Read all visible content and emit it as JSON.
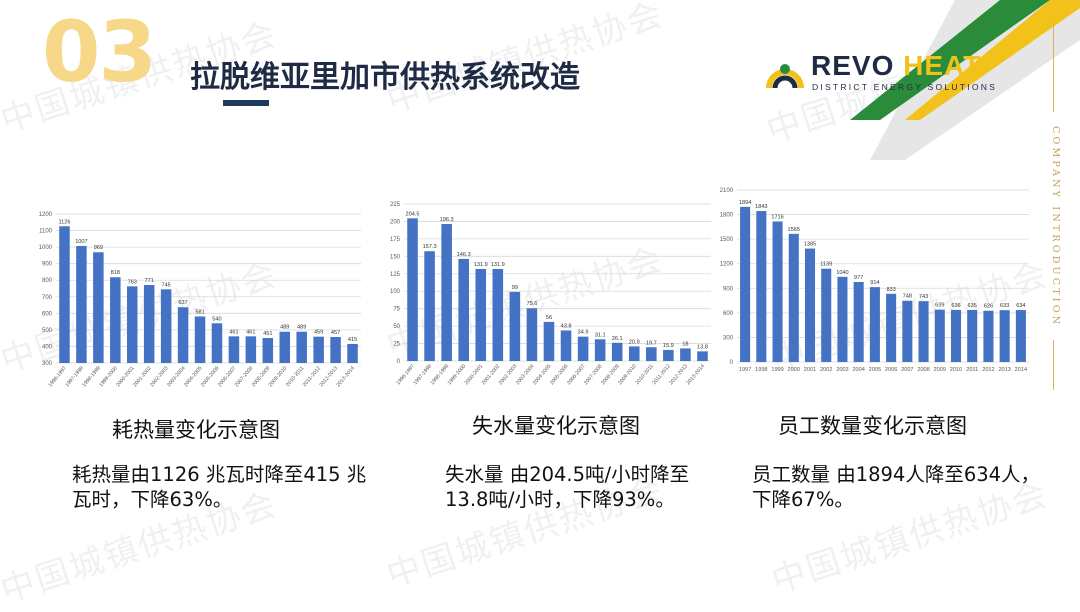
{
  "header": {
    "section_number": "03",
    "title": "拉脱维亚里加市供热系统改造"
  },
  "logo": {
    "revo": "REVO",
    "heat": "HEAT",
    "tagline": "DISTRICT ENERGY SOLUTIONS"
  },
  "side_label": "COMPANY INTRODUCTION",
  "watermark": "中国城镇供热协会",
  "colors": {
    "bar": "#4472c4",
    "section_number": "#f7d889",
    "title": "#1f2a44",
    "accent_gold": "#c5a058",
    "logo_yellow": "#f2c21a",
    "logo_green": "#2a8c3a"
  },
  "panels": [
    {
      "caption": "耗热量变化示意图",
      "description": "耗热量由1126 兆瓦时降至415 兆瓦时，下降63%。"
    },
    {
      "caption": "失水量变化示意图",
      "description": "失水量 由204.5吨/小时降至13.8吨/小时，下降93%。"
    },
    {
      "caption": "员工数量变化示意图",
      "description": "员工数量 由1894人降至634人，下降67%。"
    }
  ],
  "chart_data": [
    {
      "type": "bar",
      "title": "",
      "xlabel": "",
      "ylabel": "",
      "ylim": [
        300,
        1200
      ],
      "yticks": [
        300,
        400,
        500,
        600,
        700,
        800,
        900,
        1000,
        1100,
        1200
      ],
      "grid": true,
      "legend": "none",
      "categories": [
        "1996-1997",
        "1997-1998",
        "1998-1999",
        "1999-2000",
        "2000-2001",
        "2001-2002",
        "2002-2003",
        "2003-2004",
        "2004-2005",
        "2005-2006",
        "2006-2007",
        "2007-2008",
        "2008-2009",
        "2009-2010",
        "2010-2011",
        "2011-2012",
        "2012-2013",
        "2013-2014"
      ],
      "values": [
        1126,
        1007,
        969,
        818,
        763,
        771,
        745,
        637,
        581,
        540,
        461,
        461,
        451,
        489,
        489,
        459,
        457,
        415
      ],
      "rotate_labels": true
    },
    {
      "type": "bar",
      "title": "",
      "xlabel": "",
      "ylabel": "",
      "ylim": [
        0,
        225
      ],
      "yticks": [
        0,
        25,
        50,
        75,
        100,
        125,
        150,
        175,
        200,
        225
      ],
      "grid": true,
      "legend": "none",
      "categories": [
        "1996-1997",
        "1997-1998",
        "1998-1999",
        "1999-2000",
        "2000-2001",
        "2001-2002",
        "2002-2003",
        "2003-2004",
        "2004-2005",
        "2005-2006",
        "2006-2007",
        "2007-2008",
        "2008-2009",
        "2009-2010",
        "2010-2011",
        "2011-2012",
        "2012-2013",
        "2013-2014"
      ],
      "values": [
        204.5,
        157.3,
        196.3,
        146.3,
        131.9,
        131.9,
        99,
        75.6,
        56,
        43.8,
        34.9,
        31.1,
        26.1,
        20.9,
        19.7,
        15.9,
        18,
        13.8
      ],
      "rotate_labels": true
    },
    {
      "type": "bar",
      "title": "",
      "xlabel": "",
      "ylabel": "",
      "ylim": [
        0,
        2100
      ],
      "yticks": [
        0,
        300,
        600,
        900,
        1200,
        1500,
        1800,
        2100
      ],
      "grid": true,
      "legend": "none",
      "categories": [
        "1997",
        "1998",
        "1999",
        "2000",
        "2001",
        "2002",
        "2003",
        "2004",
        "2005",
        "2006",
        "2007",
        "2008",
        "2009",
        "2010",
        "2011",
        "2012",
        "2013",
        "2014"
      ],
      "values": [
        1894,
        1843,
        1716,
        1565,
        1385,
        1139,
        1040,
        977,
        914,
        833,
        748,
        743,
        639,
        636,
        635,
        626,
        633,
        634
      ],
      "rotate_labels": false
    }
  ]
}
